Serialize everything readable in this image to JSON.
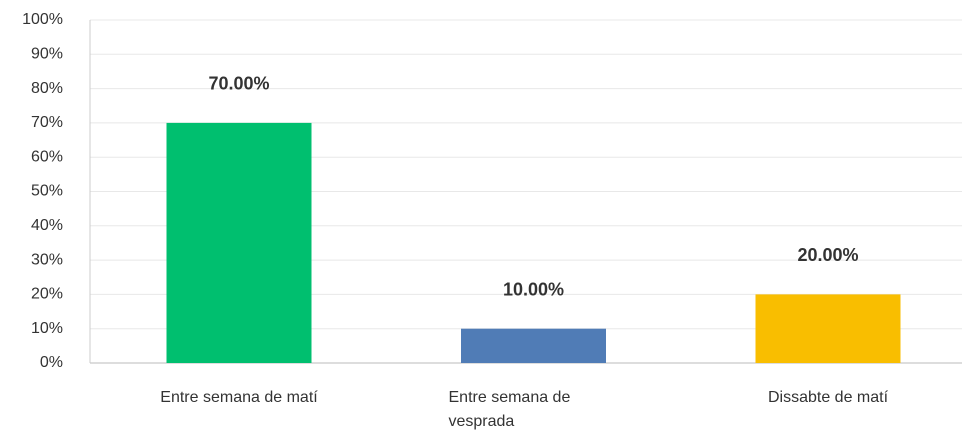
{
  "chart_data": {
    "type": "bar",
    "categories": [
      "Entre semana de matí",
      "Entre semana de vesprada",
      "Dissabte de matí"
    ],
    "values": [
      70,
      10,
      20
    ],
    "value_labels": [
      "70.00%",
      "10.00%",
      "20.00%"
    ],
    "colors": [
      "#00bf6f",
      "#507cb6",
      "#f9be00"
    ],
    "ylim": [
      0,
      100
    ],
    "yticks": [
      {
        "value": 0,
        "label": "0%"
      },
      {
        "value": 10,
        "label": "10%"
      },
      {
        "value": 20,
        "label": "20%"
      },
      {
        "value": 30,
        "label": "30%"
      },
      {
        "value": 40,
        "label": "40%"
      },
      {
        "value": 50,
        "label": "50%"
      },
      {
        "value": 60,
        "label": "60%"
      },
      {
        "value": 70,
        "label": "70%"
      },
      {
        "value": 80,
        "label": "80%"
      },
      {
        "value": 90,
        "label": "90%"
      },
      {
        "value": 100,
        "label": "100%"
      }
    ],
    "grid": true
  }
}
